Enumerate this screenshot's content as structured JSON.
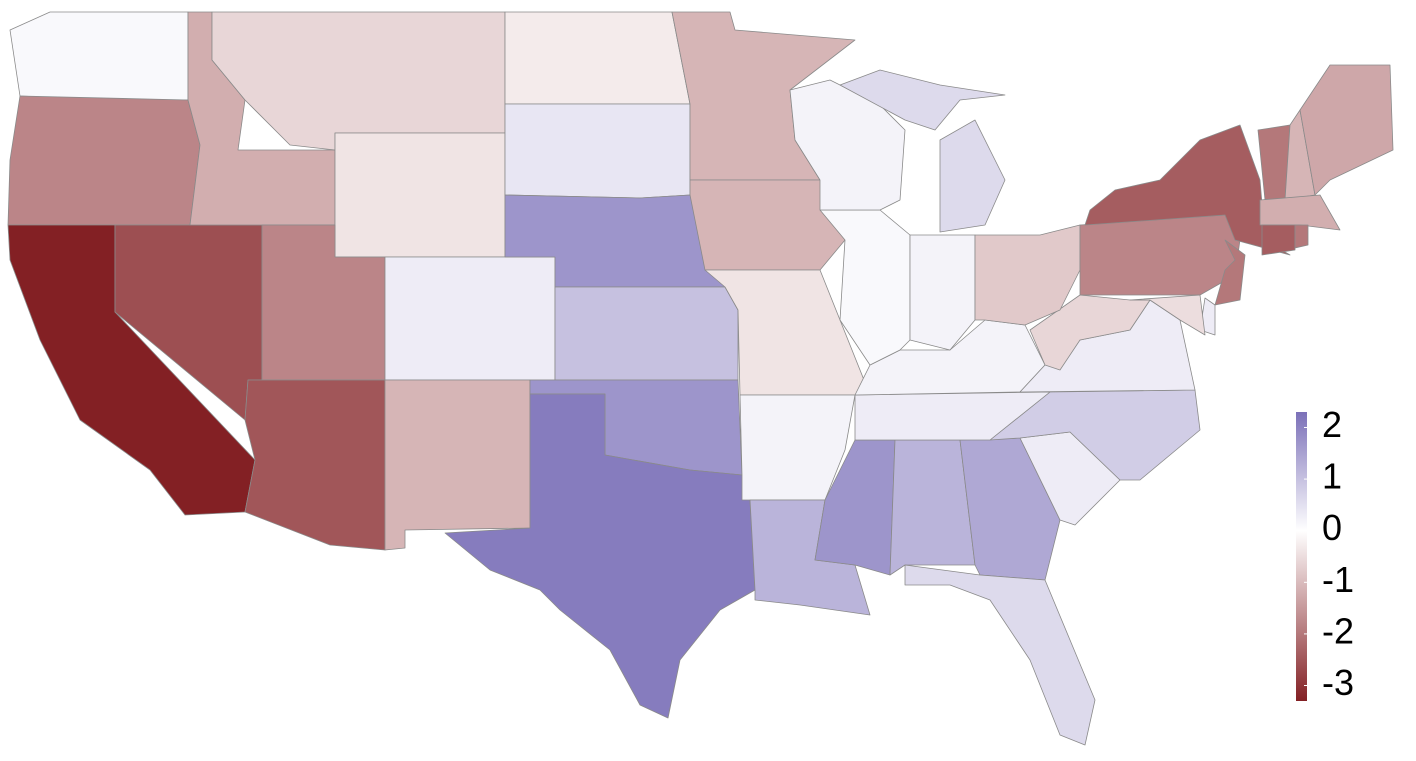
{
  "chart_data": {
    "type": "choropleth",
    "values": [
      0.1,
      -1.8,
      -3.3,
      -2.6,
      -1.2,
      -0.6,
      -0.4,
      -1.8,
      -2.5,
      0.3,
      -1.1,
      -0.3,
      0.4,
      1.7,
      1.0,
      1.7,
      2.1,
      -1.1,
      -1.1,
      -0.4,
      0.2,
      1.2,
      1.7,
      1.2,
      1.4,
      0.6,
      0.3,
      0.8,
      0.3,
      0.2,
      0.3,
      -0.6,
      0.1,
      0.2,
      -0.8,
      0.2,
      0.6,
      -1.8,
      -2.4,
      -2.0,
      0.3,
      -0.5,
      -2.0,
      -1.1,
      -1.3,
      -1.2,
      -2.4,
      -2.0
    ],
    "clim": [
      -3.3,
      2.3
    ],
    "cmid": 0,
    "colors": [
      "#832024",
      "#ffffff",
      "#7b70b8"
    ],
    "ticks": [
      -3,
      -2,
      -1,
      0,
      1,
      2
    ]
  }
}
